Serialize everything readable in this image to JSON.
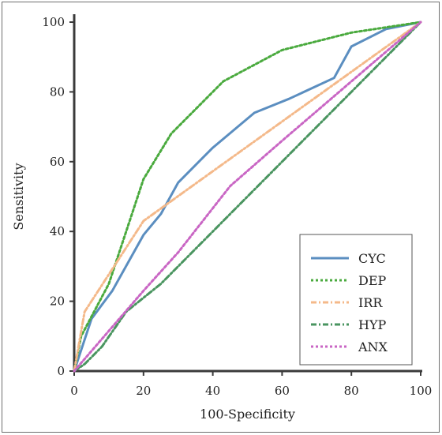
{
  "chart_data": {
    "type": "line",
    "title": "",
    "xlabel": "100-Specificity",
    "ylabel": "Sensitivity",
    "xlim": [
      0,
      100
    ],
    "ylim": [
      0,
      100
    ],
    "xticks": [
      "0",
      "20",
      "40",
      "60",
      "80",
      "100"
    ],
    "yticks": [
      "0",
      "20",
      "40",
      "60",
      "80",
      "100"
    ],
    "grid": false,
    "legend_position": "bottom-right",
    "series": [
      {
        "name": "CYC",
        "color": "#5b8ec0",
        "style": "solid",
        "x": [
          0,
          5,
          11,
          20,
          25,
          30,
          40,
          52,
          62,
          75,
          80,
          90,
          100
        ],
        "y": [
          0,
          15,
          23,
          39,
          45,
          54,
          64,
          74,
          78,
          84,
          93,
          98,
          100
        ]
      },
      {
        "name": "DEP",
        "color": "#4aaa3e",
        "style": "dotted",
        "x": [
          0,
          2,
          10,
          20,
          28,
          43,
          60,
          80,
          100
        ],
        "y": [
          0,
          10,
          25,
          55,
          68,
          83,
          92,
          97,
          100
        ]
      },
      {
        "name": "IRR",
        "color": "#f4b98a",
        "style": "dashdot",
        "x": [
          0,
          3,
          20,
          100
        ],
        "y": [
          0,
          17,
          43,
          100
        ]
      },
      {
        "name": "HYP",
        "color": "#4a9560",
        "style": "dashdot",
        "x": [
          0,
          3,
          8,
          15,
          25,
          40,
          60,
          80,
          100
        ],
        "y": [
          0,
          2,
          7,
          17,
          25,
          40,
          60,
          80,
          100
        ]
      },
      {
        "name": "ANX",
        "color": "#c966c4",
        "style": "dotted",
        "x": [
          0,
          20,
          30,
          45,
          60,
          80,
          100
        ],
        "y": [
          0,
          23,
          34,
          53,
          66,
          83,
          100
        ]
      }
    ]
  }
}
